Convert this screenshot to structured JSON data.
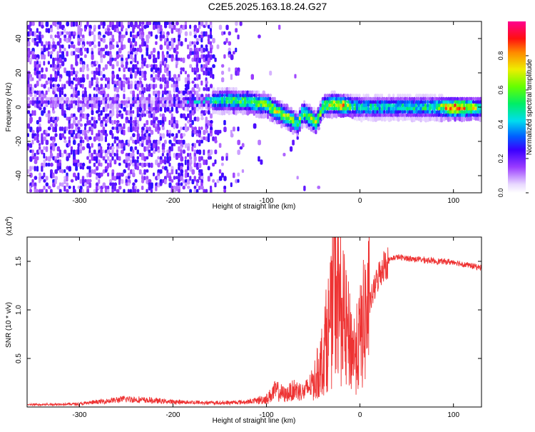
{
  "title": "C2E5.2025.163.18.24.G27",
  "chart_data": [
    {
      "type": "heatmap",
      "xlabel": "Height of straight line (km)",
      "ylabel": "Frequency (Hz)",
      "xlim": [
        -356,
        130
      ],
      "ylim": [
        -50,
        50
      ],
      "x_ticks": [
        -300,
        -200,
        -100,
        0,
        100
      ],
      "x_tick_labels": [
        "-300",
        "-200",
        "-100",
        "0",
        "100"
      ],
      "y_ticks": [
        -40,
        -20,
        0,
        20,
        40
      ],
      "y_tick_labels": [
        "-40",
        "-20",
        "0",
        "20",
        "40"
      ],
      "colorbar": {
        "label": "Normalized spectral amplitude",
        "range": [
          0,
          1
        ],
        "ticks": [
          0.0,
          0.2,
          0.4,
          0.6,
          0.8
        ],
        "tick_labels": [
          "0.0",
          "0.2",
          "0.4",
          "0.6",
          "0.8"
        ],
        "colormap": "rainbow (white-violet-blue-cyan-green-yellow-red-magenta)"
      },
      "ridge": {
        "x": [
          -356,
          -300,
          -250,
          -200,
          -170,
          -140,
          -120,
          -100,
          -85,
          -75,
          -68,
          -62,
          -55,
          -48,
          -40,
          -30,
          -20,
          -10,
          0,
          20,
          50,
          80,
          100,
          130
        ],
        "freq": [
          4,
          4,
          4,
          4,
          4.5,
          5,
          4,
          2,
          -3,
          -6,
          -9,
          -2,
          -5,
          -8,
          2,
          3,
          2,
          1.5,
          1,
          1,
          1,
          1,
          0.5,
          0.5
        ],
        "amplitude": [
          0.15,
          0.15,
          0.15,
          0.2,
          0.45,
          0.5,
          0.55,
          0.6,
          0.65,
          0.6,
          0.55,
          0.6,
          0.65,
          0.6,
          0.6,
          0.65,
          0.75,
          0.5,
          0.45,
          0.45,
          0.45,
          0.5,
          0.9,
          0.5
        ]
      }
    },
    {
      "type": "line",
      "xlabel": "Height of straight line (km)",
      "ylabel": "SNR (10 * v/v)",
      "y_multiplier_label": "(x10",
      "y_multiplier_exponent": "4",
      "y_multiplier_close": ")",
      "xlim": [
        -356,
        130
      ],
      "ylim": [
        0,
        17500
      ],
      "x_ticks": [
        -300,
        -200,
        -100,
        0,
        100
      ],
      "x_tick_labels": [
        "-300",
        "-200",
        "-100",
        "0",
        "100"
      ],
      "y_ticks": [
        5000,
        10000,
        15000
      ],
      "y_tick_labels": [
        "0.5",
        "1.0",
        "1.5"
      ],
      "series": [
        {
          "color": "#ee3333",
          "x": [
            -356,
            -300,
            -250,
            -200,
            -150,
            -120,
            -100,
            -90,
            -80,
            -70,
            -60,
            -50,
            -45,
            -40,
            -35,
            -30,
            -28,
            -25,
            -20,
            -15,
            -10,
            -5,
            0,
            5,
            10,
            15,
            20,
            25,
            30,
            35,
            40,
            50,
            60,
            80,
            100,
            115,
            130
          ],
          "y": [
            200,
            300,
            800,
            500,
            400,
            500,
            800,
            1700,
            1200,
            1800,
            1500,
            2500,
            3500,
            5000,
            7500,
            9000,
            14000,
            12000,
            10000,
            8000,
            6500,
            5500,
            7000,
            9000,
            10500,
            12000,
            13500,
            14500,
            15000,
            15300,
            15400,
            15300,
            15200,
            15000,
            14900,
            14600,
            14300
          ]
        }
      ]
    }
  ]
}
